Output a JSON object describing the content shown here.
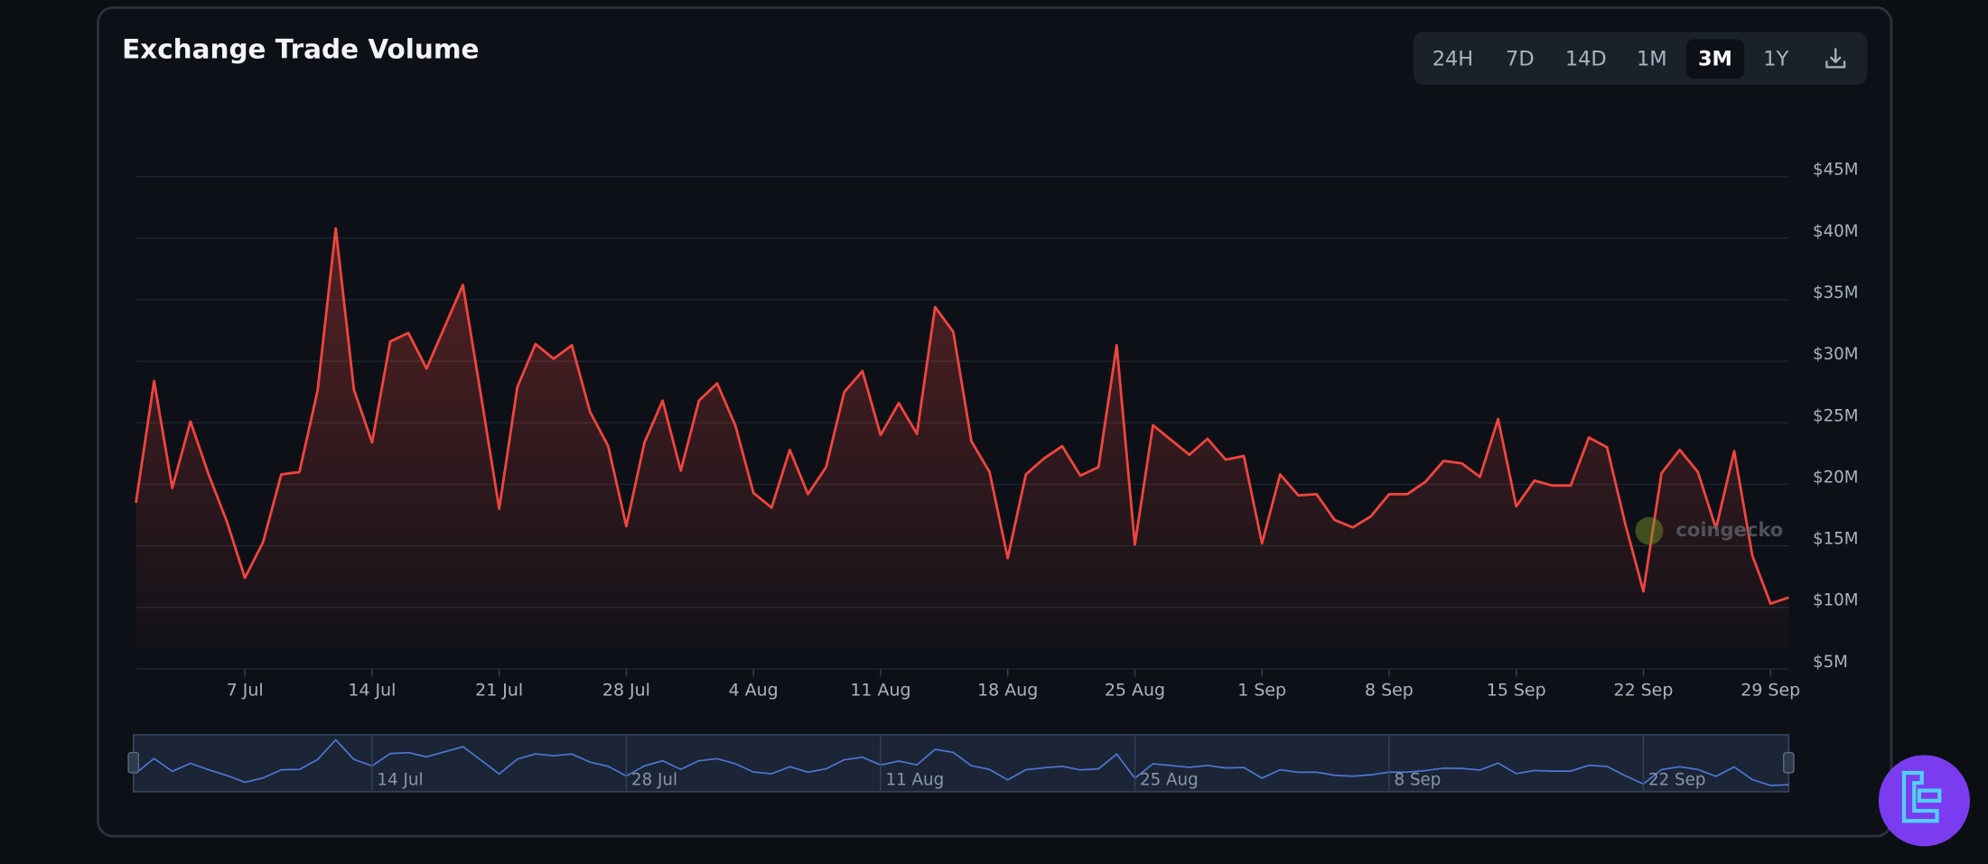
{
  "chart_data": {
    "type": "line",
    "title": "Exchange Trade Volume",
    "ranges": [
      "24H",
      "7D",
      "14D",
      "1M",
      "3M",
      "1Y"
    ],
    "active_range": "3M",
    "watermark": "coingecko",
    "color": "#f0453f",
    "categories": [
      null,
      null,
      null,
      null,
      null,
      null,
      "7 Jul",
      null,
      null,
      null,
      null,
      null,
      null,
      "14 Jul",
      null,
      null,
      null,
      null,
      null,
      null,
      "21 Jul",
      null,
      null,
      null,
      null,
      null,
      null,
      "28 Jul",
      null,
      null,
      null,
      null,
      null,
      null,
      "4 Aug",
      null,
      null,
      null,
      null,
      null,
      null,
      "11 Aug",
      null,
      null,
      null,
      null,
      null,
      null,
      "18 Aug",
      null,
      null,
      null,
      null,
      null,
      null,
      "25 Aug",
      null,
      null,
      null,
      null,
      null,
      null,
      "1 Sep",
      null,
      null,
      null,
      null,
      null,
      null,
      "8 Sep",
      null,
      null,
      null,
      null,
      null,
      null,
      "15 Sep",
      null,
      null,
      null,
      null,
      null,
      null,
      "22 Sep",
      null,
      null,
      null,
      null,
      null,
      null,
      "29 Sep",
      null
    ],
    "values": [
      18.5,
      28.4,
      19.7,
      25.1,
      20.8,
      17.0,
      12.4,
      15.3,
      20.8,
      21.0,
      27.6,
      40.8,
      27.7,
      23.4,
      31.6,
      32.3,
      29.4,
      32.8,
      36.2,
      27.2,
      18.0,
      27.9,
      31.4,
      30.2,
      31.3,
      25.9,
      23.1,
      16.6,
      23.4,
      26.8,
      21.1,
      26.8,
      28.2,
      24.8,
      19.3,
      18.1,
      22.8,
      19.2,
      21.4,
      27.5,
      29.2,
      24.0,
      26.6,
      24.1,
      34.4,
      32.4,
      23.5,
      21.0,
      14.0,
      20.8,
      22.1,
      23.1,
      20.7,
      21.4,
      31.3,
      15.1,
      24.8,
      23.6,
      22.4,
      23.7,
      22.0,
      22.3,
      15.2,
      20.8,
      19.1,
      19.2,
      17.1,
      16.5,
      17.4,
      19.2,
      19.2,
      20.2,
      21.9,
      21.7,
      20.6,
      25.3,
      18.2,
      20.3,
      19.9,
      19.9,
      23.8,
      23.0,
      16.8,
      11.3,
      20.9,
      22.8,
      21.0,
      16.4,
      22.7,
      14.2,
      10.3,
      10.8
    ],
    "ylim": [
      5,
      47
    ],
    "yticks": [
      {
        "value": 5,
        "label": "$5M"
      },
      {
        "value": 10,
        "label": "$10M"
      },
      {
        "value": 15,
        "label": "$15M"
      },
      {
        "value": 20,
        "label": "$20M"
      },
      {
        "value": 25,
        "label": "$25M"
      },
      {
        "value": 30,
        "label": "$30M"
      },
      {
        "value": 35,
        "label": "$35M"
      },
      {
        "value": 40,
        "label": "$40M"
      },
      {
        "value": 45,
        "label": "$45M"
      }
    ],
    "grid": true,
    "navigator_labels": [
      "14 Jul",
      "28 Jul",
      "11 Aug",
      "25 Aug",
      "8 Sep",
      "22 Sep"
    ]
  }
}
